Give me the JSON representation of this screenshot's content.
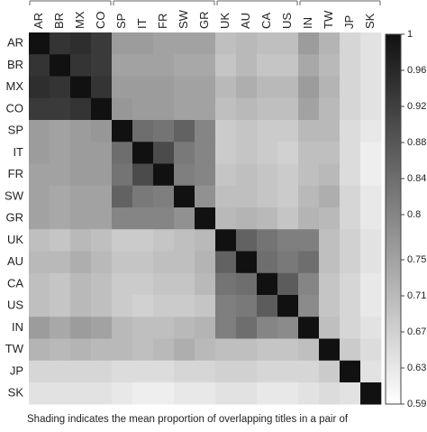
{
  "chart_data": {
    "type": "heatmap",
    "categories": [
      "AR",
      "BR",
      "MX",
      "CO",
      "SP",
      "IT",
      "FR",
      "SW",
      "GR",
      "UK",
      "AU",
      "CA",
      "US",
      "IN",
      "TW",
      "JP",
      "SK"
    ],
    "z": [
      [
        1,
        0.94,
        0.95,
        0.93,
        0.76,
        0.76,
        0.75,
        0.75,
        0.75,
        0.7,
        0.71,
        0.7,
        0.7,
        0.76,
        0.72,
        0.66,
        0.64
      ],
      [
        0.94,
        1,
        0.94,
        0.93,
        0.75,
        0.75,
        0.75,
        0.74,
        0.74,
        0.69,
        0.71,
        0.69,
        0.69,
        0.74,
        0.71,
        0.66,
        0.64
      ],
      [
        0.95,
        0.94,
        1,
        0.94,
        0.76,
        0.76,
        0.76,
        0.75,
        0.75,
        0.71,
        0.73,
        0.71,
        0.71,
        0.76,
        0.72,
        0.66,
        0.64
      ],
      [
        0.93,
        0.93,
        0.94,
        1,
        0.77,
        0.76,
        0.76,
        0.75,
        0.75,
        0.7,
        0.71,
        0.7,
        0.7,
        0.75,
        0.71,
        0.66,
        0.64
      ],
      [
        0.76,
        0.75,
        0.76,
        0.77,
        1,
        0.84,
        0.83,
        0.86,
        0.8,
        0.68,
        0.69,
        0.68,
        0.68,
        0.71,
        0.71,
        0.65,
        0.63
      ],
      [
        0.76,
        0.75,
        0.76,
        0.76,
        0.84,
        1,
        0.9,
        0.82,
        0.8,
        0.68,
        0.69,
        0.68,
        0.67,
        0.7,
        0.7,
        0.65,
        0.62
      ],
      [
        0.75,
        0.75,
        0.76,
        0.76,
        0.83,
        0.9,
        1,
        0.81,
        0.8,
        0.69,
        0.7,
        0.69,
        0.68,
        0.7,
        0.71,
        0.65,
        0.62
      ],
      [
        0.75,
        0.74,
        0.75,
        0.75,
        0.86,
        0.82,
        0.81,
        1,
        0.78,
        0.7,
        0.7,
        0.69,
        0.68,
        0.71,
        0.73,
        0.66,
        0.63
      ],
      [
        0.75,
        0.74,
        0.75,
        0.75,
        0.8,
        0.8,
        0.8,
        0.78,
        1,
        0.71,
        0.72,
        0.71,
        0.69,
        0.72,
        0.71,
        0.66,
        0.63
      ],
      [
        0.7,
        0.69,
        0.71,
        0.7,
        0.68,
        0.68,
        0.69,
        0.7,
        0.71,
        1,
        0.86,
        0.83,
        0.81,
        0.81,
        0.7,
        0.67,
        0.64
      ],
      [
        0.71,
        0.71,
        0.73,
        0.71,
        0.69,
        0.69,
        0.7,
        0.7,
        0.72,
        0.86,
        1,
        0.84,
        0.82,
        0.84,
        0.7,
        0.67,
        0.64
      ],
      [
        0.7,
        0.69,
        0.71,
        0.7,
        0.68,
        0.68,
        0.69,
        0.69,
        0.71,
        0.83,
        0.84,
        1,
        0.87,
        0.8,
        0.69,
        0.66,
        0.63
      ],
      [
        0.7,
        0.69,
        0.71,
        0.7,
        0.68,
        0.67,
        0.68,
        0.68,
        0.69,
        0.81,
        0.82,
        0.87,
        1,
        0.79,
        0.69,
        0.66,
        0.63
      ],
      [
        0.76,
        0.74,
        0.76,
        0.75,
        0.71,
        0.7,
        0.7,
        0.71,
        0.72,
        0.81,
        0.84,
        0.8,
        0.79,
        1,
        0.7,
        0.66,
        0.64
      ],
      [
        0.72,
        0.71,
        0.72,
        0.71,
        0.71,
        0.7,
        0.71,
        0.73,
        0.71,
        0.7,
        0.7,
        0.69,
        0.69,
        0.7,
        1,
        0.68,
        0.65
      ],
      [
        0.66,
        0.66,
        0.66,
        0.66,
        0.65,
        0.65,
        0.65,
        0.66,
        0.66,
        0.67,
        0.67,
        0.66,
        0.66,
        0.66,
        0.68,
        1,
        0.64
      ],
      [
        0.64,
        0.64,
        0.64,
        0.64,
        0.63,
        0.62,
        0.62,
        0.63,
        0.63,
        0.64,
        0.64,
        0.63,
        0.63,
        0.64,
        0.65,
        0.64,
        1
      ]
    ],
    "zlim": [
      0.59,
      1
    ],
    "zticks": [
      0.59,
      0.63,
      0.67,
      0.71,
      0.75,
      0.8,
      0.84,
      0.88,
      0.92,
      0.96,
      1
    ],
    "color_low": "#ffffff",
    "color_high": "#111111",
    "caption": "Shading indicates the mean proportion of overlapping titles in a pair of"
  }
}
